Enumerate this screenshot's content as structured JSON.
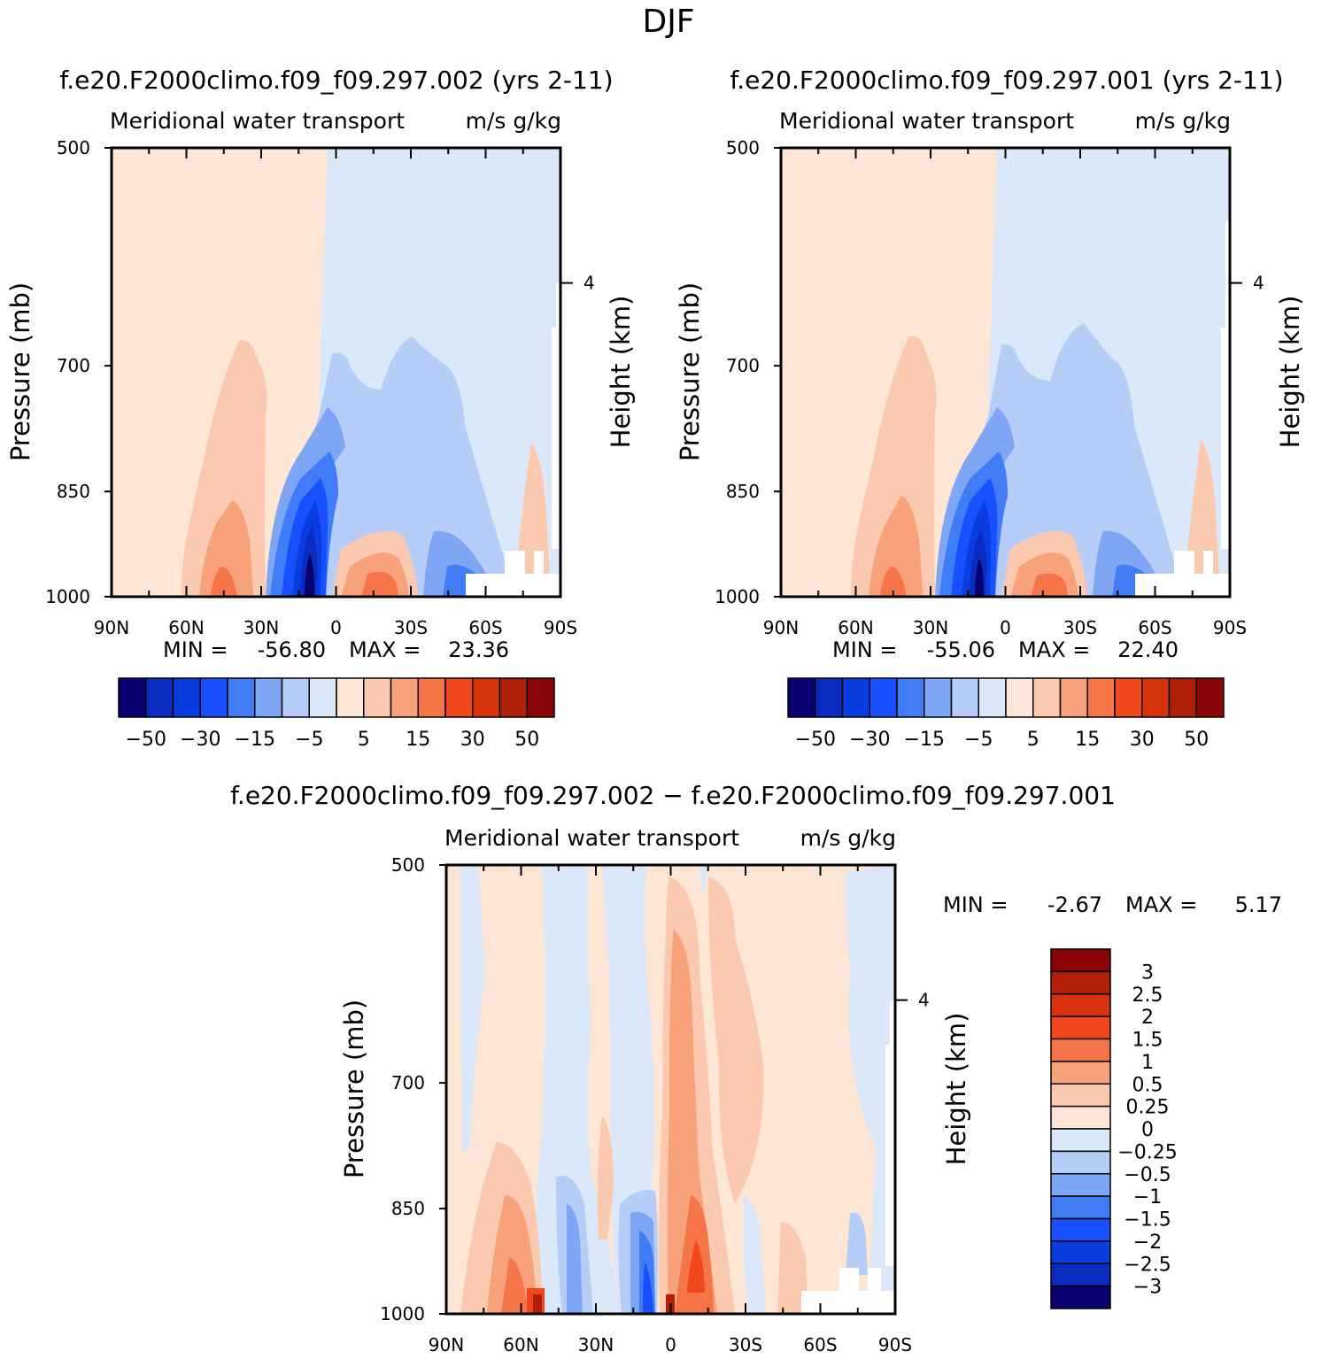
{
  "main_title": "DJF",
  "chart_data": [
    {
      "type": "contour",
      "id": "case",
      "title": "f.e20.F2000climo.f09_f09.297.002 (yrs 2-11)",
      "subtitle_left": "Meridional water transport",
      "subtitle_right": "m/s g/kg",
      "xlabel": "",
      "ylabel": "Pressure (mb)",
      "ylabel_right": "Height (km)",
      "x_ticks": [
        "90N",
        "60N",
        "30N",
        "0",
        "30S",
        "60S",
        "90S"
      ],
      "y_ticks": [
        "500",
        "700",
        "850",
        "1000"
      ],
      "y_right_ticks": [
        "4"
      ],
      "ylim": [
        500,
        1000
      ],
      "stats": {
        "min_label": "MIN =",
        "min": "-56.80",
        "max_label": "MAX =",
        "max": "23.36"
      },
      "levels": [
        -50,
        -40,
        -30,
        -20,
        -15,
        -10,
        -5,
        0,
        5,
        10,
        15,
        20,
        30,
        40,
        50
      ],
      "colorbar_labels": [
        "−50",
        "−30",
        "−15",
        "−5",
        "5",
        "15",
        "30",
        "50"
      ]
    },
    {
      "type": "contour",
      "id": "control",
      "title": "f.e20.F2000climo.f09_f09.297.001 (yrs 2-11)",
      "subtitle_left": "Meridional water transport",
      "subtitle_right": "m/s g/kg",
      "ylabel": "Pressure (mb)",
      "ylabel_right": "Height (km)",
      "x_ticks": [
        "90N",
        "60N",
        "30N",
        "0",
        "30S",
        "60S",
        "90S"
      ],
      "y_ticks": [
        "500",
        "700",
        "850",
        "1000"
      ],
      "y_right_ticks": [
        "4"
      ],
      "ylim": [
        500,
        1000
      ],
      "stats": {
        "min_label": "MIN =",
        "min": "-55.06",
        "max_label": "MAX =",
        "max": "22.40"
      },
      "levels": [
        -50,
        -40,
        -30,
        -20,
        -15,
        -10,
        -5,
        0,
        5,
        10,
        15,
        20,
        30,
        40,
        50
      ],
      "colorbar_labels": [
        "−50",
        "−30",
        "−15",
        "−5",
        "5",
        "15",
        "30",
        "50"
      ]
    },
    {
      "type": "contour",
      "id": "difference",
      "title": "f.e20.F2000climo.f09_f09.297.002 − f.e20.F2000climo.f09_f09.297.001",
      "subtitle_left": "Meridional water transport",
      "subtitle_right": "m/s g/kg",
      "ylabel": "Pressure (mb)",
      "ylabel_right": "Height (km)",
      "x_ticks": [
        "90N",
        "60N",
        "30N",
        "0",
        "30S",
        "60S",
        "90S"
      ],
      "y_ticks": [
        "500",
        "700",
        "850",
        "1000"
      ],
      "y_right_ticks": [
        "4"
      ],
      "ylim": [
        500,
        1000
      ],
      "stats": {
        "min_label": "MIN =",
        "min": "-2.67",
        "max_label": "MAX =",
        "max": "5.17"
      },
      "levels": [
        -3,
        -2.5,
        -2,
        -1.5,
        -1,
        -0.5,
        -0.25,
        0,
        0.25,
        0.5,
        1,
        1.5,
        2,
        2.5,
        3
      ],
      "colorbar_labels": [
        "3",
        "2.5",
        "2",
        "1.5",
        "1",
        "0.5",
        "0.25",
        "0",
        "−0.25",
        "−0.5",
        "−1",
        "−1.5",
        "−2",
        "−2.5",
        "−3"
      ]
    }
  ],
  "palette": [
    "#08006e",
    "#0a2bbf",
    "#0a3de0",
    "#1850ff",
    "#3f7cf5",
    "#7ea6f5",
    "#b5cdf7",
    "#dbe8fa",
    "#fde6d6",
    "#fbc9b0",
    "#f8a27c",
    "#f57548",
    "#f0481c",
    "#d6330c",
    "#b01f08",
    "#8a0606"
  ]
}
